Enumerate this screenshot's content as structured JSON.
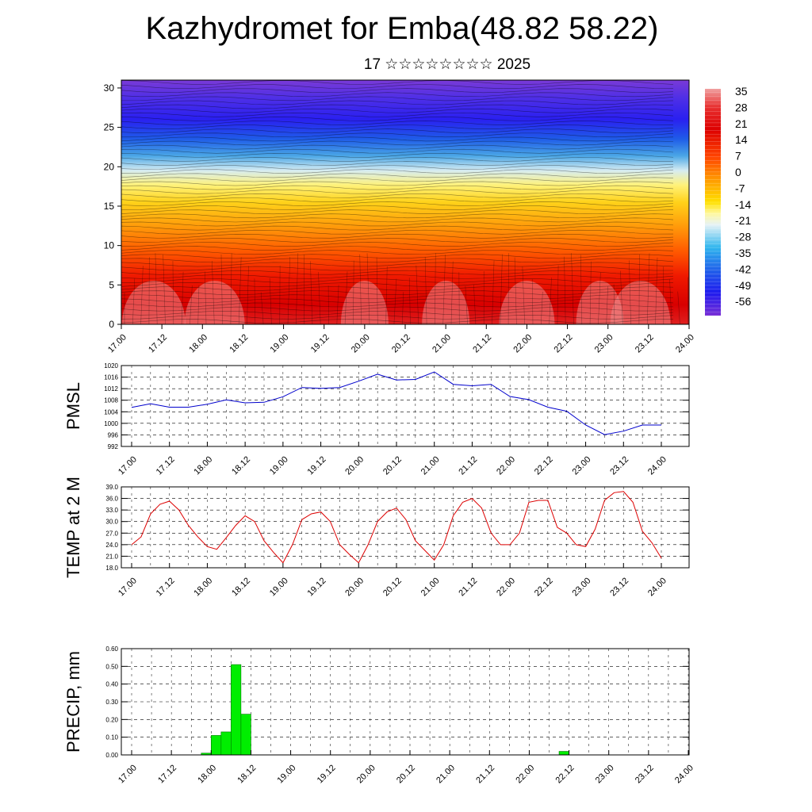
{
  "title": "Kazhydromet for Emba(48.82 58.22)",
  "subtitle": "17 ☆☆☆☆☆☆☆☆ 2025",
  "x_tick_labels": [
    "17.00",
    "17.12",
    "18.00",
    "18.12",
    "19.00",
    "19.12",
    "20.00",
    "20.12",
    "21.00",
    "21.12",
    "22.00",
    "22.12",
    "23.00",
    "23.12",
    "24.00"
  ],
  "chart_data": [
    {
      "type": "heatmap",
      "x_range": [
        0,
        7
      ],
      "ylim": [
        0,
        31
      ],
      "y_ticks": [
        0,
        5,
        10,
        15,
        20,
        25,
        30
      ],
      "colorbar_labels": [
        "35",
        "28",
        "21",
        "14",
        "7",
        "0",
        "-7",
        "-14",
        "-21",
        "-28",
        "-35",
        "-42",
        "-49",
        "-56"
      ],
      "colorbar_range": [
        -63,
        42
      ]
    },
    {
      "type": "line",
      "ylabel": "PMSL",
      "ylim": [
        992,
        1020
      ],
      "y_ticks": [
        "1020",
        "1016",
        "1012",
        "1008",
        "1004",
        "1000",
        "996",
        "992"
      ],
      "color": "#0000cc",
      "x": [
        0,
        0.25,
        0.5,
        0.75,
        1,
        1.25,
        1.5,
        1.75,
        2,
        2.25,
        2.5,
        2.75,
        3,
        3.25,
        3.5,
        3.75,
        4,
        4.25,
        4.5,
        4.75,
        5,
        5.25,
        5.5,
        5.75,
        6,
        6.25,
        6.5,
        6.75,
        7
      ],
      "values": [
        1005.5,
        1006.8,
        1005.6,
        1005.6,
        1006.6,
        1008.1,
        1007.1,
        1007.3,
        1009.2,
        1012.4,
        1012.1,
        1012.4,
        1014.6,
        1017.0,
        1015.0,
        1015.2,
        1017.8,
        1013.5,
        1013.0,
        1013.5,
        1009.3,
        1008.2,
        1005.6,
        1004.2,
        999.4,
        996.1,
        997.3,
        999.4,
        999.4
      ]
    },
    {
      "type": "line",
      "ylabel": "TEMP at 2 M",
      "ylim": [
        18,
        39
      ],
      "y_ticks": [
        "39.0",
        "36.0",
        "33.0",
        "30.0",
        "27.0",
        "24.0",
        "21.0",
        "18.0"
      ],
      "color": "#dd0000",
      "x": [
        0,
        0.125,
        0.25,
        0.375,
        0.5,
        0.625,
        0.75,
        0.875,
        1,
        1.125,
        1.25,
        1.375,
        1.5,
        1.625,
        1.75,
        1.875,
        2,
        2.125,
        2.25,
        2.375,
        2.5,
        2.625,
        2.75,
        2.875,
        3,
        3.125,
        3.25,
        3.375,
        3.5,
        3.625,
        3.75,
        3.875,
        4,
        4.125,
        4.25,
        4.375,
        4.5,
        4.625,
        4.75,
        4.875,
        5,
        5.125,
        5.25,
        5.375,
        5.5,
        5.625,
        5.75,
        5.875,
        6,
        6.125,
        6.25,
        6.375,
        6.5,
        6.625,
        6.75,
        6.875,
        7
      ],
      "values": [
        24.0,
        26.0,
        32.0,
        34.5,
        35.3,
        33.0,
        29.0,
        26.0,
        23.5,
        22.8,
        25.8,
        29.0,
        31.5,
        30.0,
        25.0,
        22.0,
        19.3,
        24.0,
        30.5,
        32.0,
        32.5,
        30.0,
        24.0,
        21.5,
        19.3,
        24.0,
        30.0,
        32.5,
        33.5,
        30.5,
        25.0,
        22.5,
        20.0,
        24.0,
        31.5,
        35.0,
        36.0,
        33.5,
        27.0,
        24.0,
        24.0,
        27.0,
        35.0,
        35.5,
        35.5,
        28.5,
        27.0,
        24.0,
        23.5,
        28.0,
        35.5,
        37.5,
        37.8,
        35.0,
        27.5,
        24.5,
        20.5
      ]
    },
    {
      "type": "bar",
      "ylabel": "PRECIP, mm",
      "ylim": [
        0,
        0.6
      ],
      "y_ticks": [
        "0.60",
        "0.50",
        "0.40",
        "0.30",
        "0.20",
        "0.10",
        "0.00"
      ],
      "color": "#00ee00",
      "bars": [
        {
          "x0": 0.875,
          "x1": 1.0,
          "value": 0.01
        },
        {
          "x0": 1.0,
          "x1": 1.125,
          "value": 0.11
        },
        {
          "x0": 1.125,
          "x1": 1.25,
          "value": 0.13
        },
        {
          "x0": 1.25,
          "x1": 1.375,
          "value": 0.51
        },
        {
          "x0": 1.375,
          "x1": 1.5,
          "value": 0.23
        },
        {
          "x0": 5.375,
          "x1": 5.5,
          "value": 0.02
        }
      ]
    }
  ]
}
